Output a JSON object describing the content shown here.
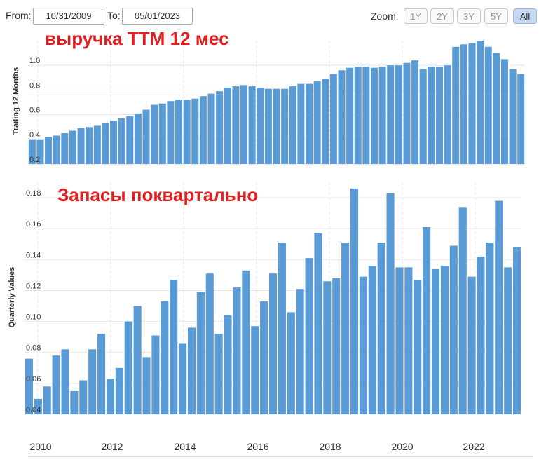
{
  "toolbar": {
    "from_label": "From:",
    "from_value": "10/31/2009",
    "to_label": "To:",
    "to_value": "05/01/2023",
    "zoom_label": "Zoom:",
    "zoom_options": [
      "1Y",
      "2Y",
      "3Y",
      "5Y",
      "All"
    ],
    "zoom_selected": "All"
  },
  "colors": {
    "bar": "#5b9bd5",
    "overlay_title": "#e02020",
    "grid": "#e6e6e6",
    "zoom_active_bg": "#c7d8f2"
  },
  "chart_data": [
    {
      "type": "bar",
      "title": "выручка TTM 12 мес",
      "ylabel": "Trailing 12 Months",
      "ylim": [
        0.2,
        1.2
      ],
      "yticks": [
        "0.2",
        "0.4",
        "0.6",
        "0.8",
        "1.0"
      ],
      "values": [
        0.4,
        0.4,
        0.42,
        0.43,
        0.45,
        0.47,
        0.49,
        0.5,
        0.51,
        0.53,
        0.55,
        0.57,
        0.59,
        0.61,
        0.64,
        0.68,
        0.69,
        0.71,
        0.72,
        0.72,
        0.73,
        0.75,
        0.77,
        0.79,
        0.82,
        0.83,
        0.84,
        0.83,
        0.82,
        0.81,
        0.81,
        0.81,
        0.83,
        0.85,
        0.85,
        0.87,
        0.89,
        0.93,
        0.96,
        0.98,
        0.99,
        0.99,
        0.98,
        0.99,
        1.0,
        1.0,
        1.02,
        1.04,
        0.97,
        0.99,
        0.99,
        1.0,
        1.15,
        1.17,
        1.18,
        1.2,
        1.15,
        1.1,
        1.05,
        0.97,
        0.93
      ]
    },
    {
      "type": "bar",
      "title": "Запасы поквартально",
      "ylabel": "Quarterly Values",
      "ylim": [
        0.04,
        0.19
      ],
      "yticks": [
        "0.04",
        "0.06",
        "0.08",
        "0.10",
        "0.12",
        "0.14",
        "0.16",
        "0.18"
      ],
      "x_ticks": [
        "2010",
        "2012",
        "2014",
        "2016",
        "2018",
        "2020",
        "2022"
      ],
      "values": [
        0.076,
        0.05,
        0.058,
        0.078,
        0.082,
        0.055,
        0.062,
        0.082,
        0.092,
        0.063,
        0.07,
        0.1,
        0.11,
        0.077,
        0.091,
        0.113,
        0.127,
        0.086,
        0.096,
        0.119,
        0.131,
        0.092,
        0.104,
        0.122,
        0.133,
        0.097,
        0.113,
        0.131,
        0.151,
        0.106,
        0.121,
        0.141,
        0.157,
        0.126,
        0.128,
        0.151,
        0.186,
        0.129,
        0.136,
        0.151,
        0.183,
        0.135,
        0.135,
        0.127,
        0.161,
        0.134,
        0.136,
        0.149,
        0.174,
        0.129,
        0.142,
        0.151,
        0.178,
        0.135,
        0.148
      ]
    }
  ]
}
